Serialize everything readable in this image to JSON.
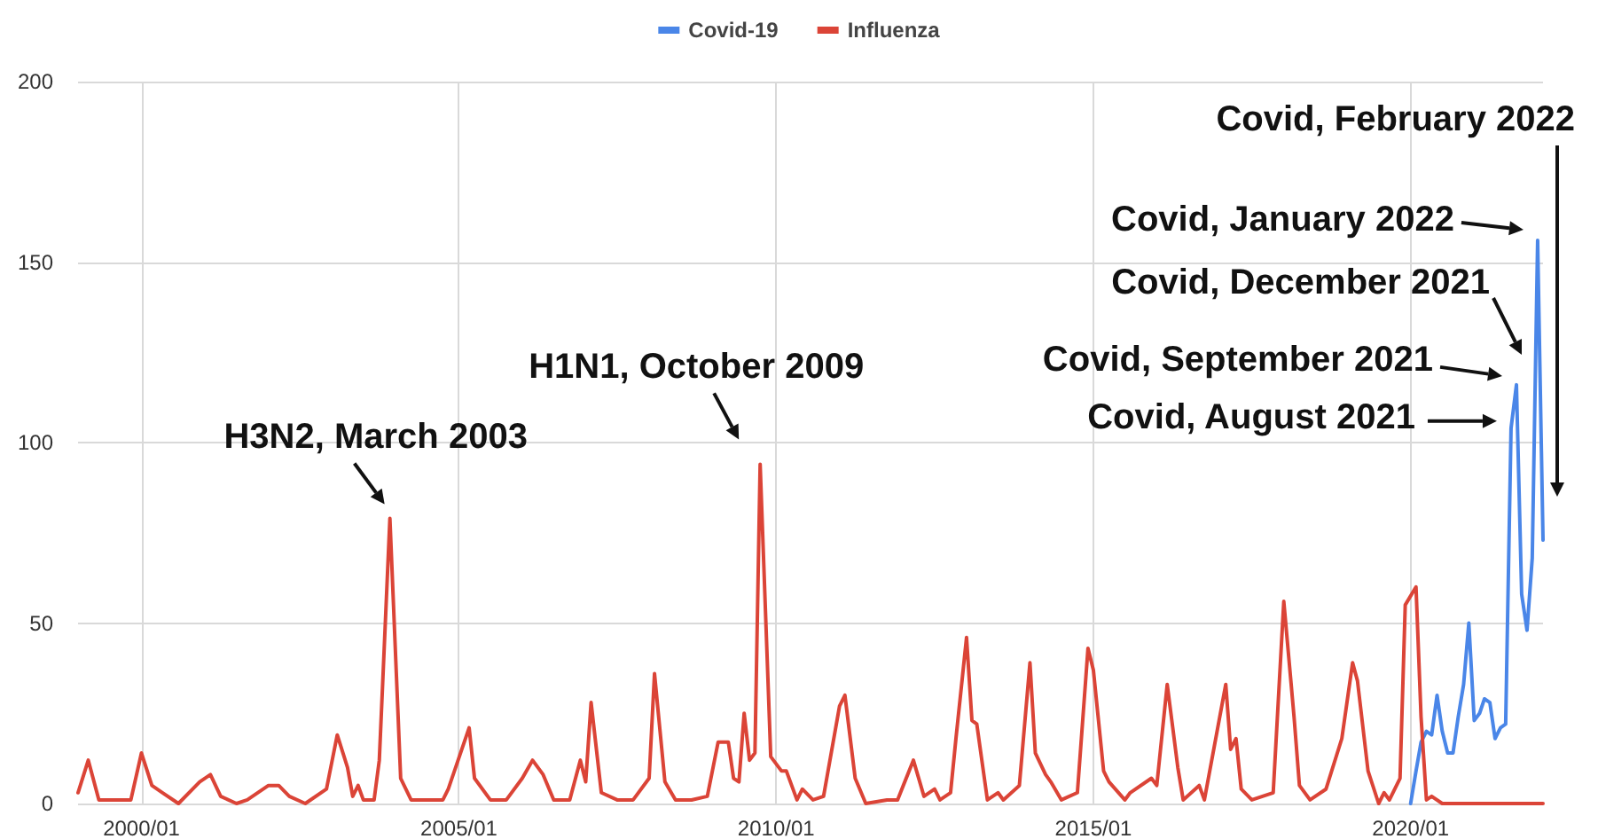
{
  "chart_data": {
    "type": "line",
    "xlim": [
      "1999-01",
      "2022-02"
    ],
    "xticks": [
      {
        "value": "2000-01",
        "label": "2000/01"
      },
      {
        "value": "2005-01",
        "label": "2005/01"
      },
      {
        "value": "2010-01",
        "label": "2010/01"
      },
      {
        "value": "2015-01",
        "label": "2015/01"
      },
      {
        "value": "2020-01",
        "label": "2020/01"
      }
    ],
    "ylim": [
      0,
      200
    ],
    "yticks": [
      0,
      50,
      100,
      150,
      200
    ],
    "grid": true,
    "legend": "top",
    "marker": "none",
    "line_style": "solid",
    "series": [
      {
        "name": "Covid-19",
        "color": "#4a86e8",
        "x": [
          "2020-01",
          "2020-02",
          "2020-03",
          "2020-04",
          "2020-05",
          "2020-06",
          "2020-07",
          "2020-08",
          "2020-09",
          "2020-10",
          "2020-11",
          "2020-12",
          "2021-01",
          "2021-02",
          "2021-03",
          "2021-04",
          "2021-05",
          "2021-06",
          "2021-07",
          "2021-08",
          "2021-09",
          "2021-10",
          "2021-11",
          "2021-12",
          "2022-01",
          "2022-02"
        ],
        "values": [
          0,
          9,
          17,
          20,
          19,
          30,
          20,
          14,
          14,
          24,
          33,
          50,
          23,
          25,
          29,
          28,
          18,
          21,
          22,
          104,
          116,
          58,
          48,
          68,
          156,
          73
        ]
      },
      {
        "name": "Influenza",
        "color": "#db4437",
        "x": [
          "1999-01",
          "1999-03",
          "1999-05",
          "1999-11",
          "2000-01",
          "2000-03",
          "2000-05",
          "2000-08",
          "2000-12",
          "2001-02",
          "2001-04",
          "2001-07",
          "2001-09",
          "2002-01",
          "2002-03",
          "2002-05",
          "2002-08",
          "2002-12",
          "2003-02",
          "2003-04",
          "2003-05",
          "2003-06",
          "2003-07",
          "2003-09",
          "2003-10",
          "2003-12",
          "2004-02",
          "2004-04",
          "2004-10",
          "2004-11",
          "2005-03",
          "2005-04",
          "2005-07",
          "2005-10",
          "2006-01",
          "2006-03",
          "2006-05",
          "2006-07",
          "2006-10",
          "2006-12",
          "2007-01",
          "2007-02",
          "2007-04",
          "2007-07",
          "2007-10",
          "2008-01",
          "2008-02",
          "2008-04",
          "2008-06",
          "2008-09",
          "2008-12",
          "2009-02",
          "2009-04",
          "2009-05",
          "2009-06",
          "2009-07",
          "2009-08",
          "2009-09",
          "2009-10",
          "2009-12",
          "2010-02",
          "2010-03",
          "2010-05",
          "2010-06",
          "2010-08",
          "2010-10",
          "2011-01",
          "2011-02",
          "2011-04",
          "2011-06",
          "2011-10",
          "2011-12",
          "2012-03",
          "2012-05",
          "2012-07",
          "2012-08",
          "2012-10",
          "2012-11",
          "2013-01",
          "2013-02",
          "2013-03",
          "2013-05",
          "2013-07",
          "2013-08",
          "2013-11",
          "2014-01",
          "2014-02",
          "2014-04",
          "2014-05",
          "2014-07",
          "2014-10",
          "2014-12",
          "2015-01",
          "2015-03",
          "2015-04",
          "2015-07",
          "2015-08",
          "2015-12",
          "2016-01",
          "2016-03",
          "2016-05",
          "2016-06",
          "2016-09",
          "2016-10",
          "2017-02",
          "2017-03",
          "2017-04",
          "2017-05",
          "2017-07",
          "2017-11",
          "2018-01",
          "2018-03",
          "2018-04",
          "2018-06",
          "2018-09",
          "2018-12",
          "2019-02",
          "2019-03",
          "2019-05",
          "2019-07",
          "2019-08",
          "2019-09",
          "2019-11",
          "2019-12",
          "2020-02",
          "2020-03",
          "2020-04",
          "2020-05",
          "2020-07",
          "2022-02"
        ],
        "values": [
          3,
          12,
          1,
          1,
          14,
          5,
          3,
          0,
          6,
          8,
          2,
          0,
          1,
          5,
          5,
          2,
          0,
          4,
          19,
          10,
          2,
          5,
          1,
          1,
          12,
          79,
          7,
          1,
          1,
          4,
          21,
          7,
          1,
          1,
          7,
          12,
          8,
          1,
          1,
          12,
          6,
          28,
          3,
          1,
          1,
          7,
          36,
          6,
          1,
          1,
          2,
          17,
          17,
          7,
          6,
          25,
          12,
          14,
          94,
          13,
          9,
          9,
          1,
          4,
          1,
          2,
          27,
          30,
          7,
          0,
          1,
          1,
          12,
          2,
          4,
          1,
          3,
          18,
          46,
          23,
          22,
          1,
          3,
          1,
          5,
          39,
          14,
          8,
          6,
          1,
          3,
          43,
          37,
          9,
          6,
          1,
          3,
          7,
          5,
          33,
          10,
          1,
          5,
          1,
          33,
          15,
          18,
          4,
          1,
          3,
          56,
          24,
          5,
          1,
          4,
          18,
          39,
          34,
          9,
          0,
          3,
          1,
          7,
          55,
          60,
          24,
          1,
          2,
          0,
          0
        ]
      }
    ],
    "annotations": [
      {
        "text": "H3N2, March 2003",
        "x": "2003-12",
        "y": 79
      },
      {
        "text": "H1N1, October 2009",
        "x": "2009-10",
        "y": 94
      },
      {
        "text": "Covid, August 2021",
        "x": "2021-08",
        "y": 104
      },
      {
        "text": "Covid, September 2021",
        "x": "2021-09",
        "y": 116
      },
      "Covid, December 2021",
      {
        "text": "Covid, January 2022",
        "x": "2022-01",
        "y": 156
      },
      "Covid, February 2022"
    ]
  }
}
